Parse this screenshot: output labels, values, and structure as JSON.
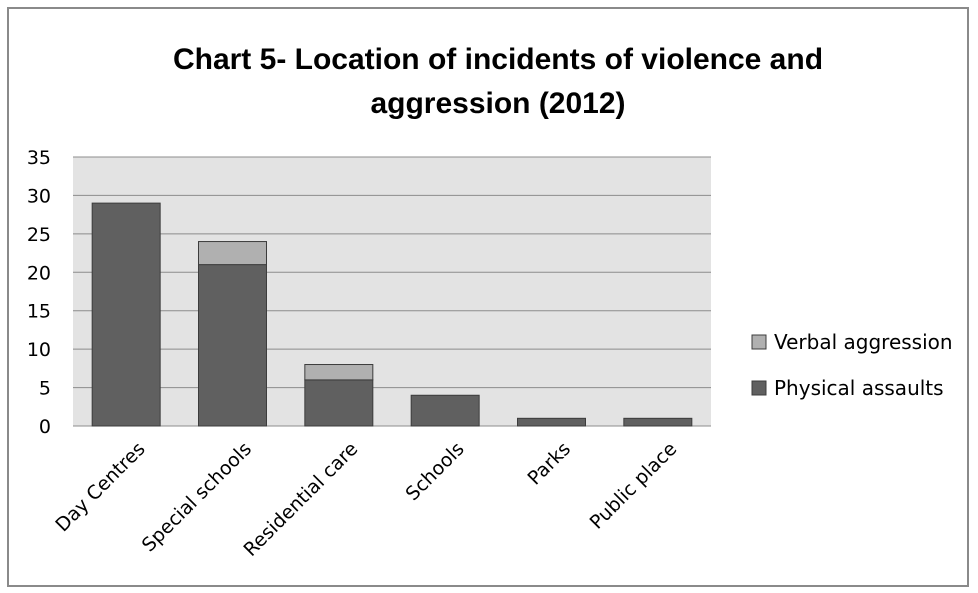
{
  "chart_data": {
    "type": "bar",
    "stacked": true,
    "title_lines": [
      "Chart 5- Location of incidents of violence and",
      "aggression (2012)"
    ],
    "title": "Chart 5- Location of incidents of violence and aggression (2012)",
    "xlabel": "",
    "ylabel": "",
    "categories": [
      "Day Centres",
      "Special schools",
      "Residential care",
      "Schools",
      "Parks",
      "Public place"
    ],
    "series": [
      {
        "name": "Physical assaults",
        "values": [
          29,
          21,
          6,
          4,
          1,
          1
        ],
        "color": "#606060"
      },
      {
        "name": "Verbal aggression",
        "values": [
          0,
          3,
          2,
          0,
          0,
          0
        ],
        "color": "#b0b0b0"
      }
    ],
    "ylim": [
      0,
      35
    ],
    "yticks": [
      0,
      5,
      10,
      15,
      20,
      25,
      30,
      35
    ],
    "grid": true,
    "legend_position": "right",
    "legend_order": [
      "Verbal aggression",
      "Physical assaults"
    ],
    "plot_background": "#e3e3e3",
    "gridline_color": "#8c8c8c"
  }
}
